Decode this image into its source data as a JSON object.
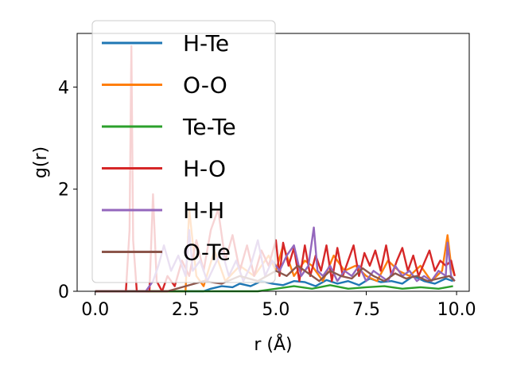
{
  "chart_data": {
    "type": "line",
    "title": "",
    "xlabel": "r (Å)",
    "ylabel": "g(r)",
    "xlim": [
      -0.5,
      10.35
    ],
    "ylim": [
      0,
      5.05
    ],
    "x_ticks": [
      "0.0",
      "2.5",
      "5.0",
      "7.5",
      "10.0"
    ],
    "y_ticks": [
      "0",
      "2",
      "4"
    ],
    "grid": false,
    "legend_position": "upper-left",
    "series": [
      {
        "name": "H-Te",
        "color": "#1f77b4",
        "x": [
          0,
          3.0,
          3.2,
          3.5,
          3.8,
          4.0,
          4.3,
          4.6,
          4.9,
          5.2,
          5.5,
          5.8,
          6.1,
          6.4,
          6.7,
          7.0,
          7.3,
          7.6,
          7.9,
          8.2,
          8.5,
          8.8,
          9.1,
          9.4,
          9.7,
          9.9
        ],
        "y": [
          0,
          0,
          0.05,
          0.1,
          0.08,
          0.15,
          0.1,
          0.2,
          0.15,
          0.12,
          0.2,
          0.18,
          0.1,
          0.22,
          0.15,
          0.2,
          0.12,
          0.25,
          0.18,
          0.2,
          0.15,
          0.3,
          0.2,
          0.15,
          0.25,
          0.2
        ]
      },
      {
        "name": "O-O",
        "color": "#ff7f0e",
        "x": [
          0,
          2.5,
          2.6,
          2.8,
          3.0,
          3.3,
          3.6,
          4.0,
          4.4,
          4.8,
          5.0,
          5.2,
          5.5,
          5.8,
          6.0,
          6.3,
          6.6,
          6.9,
          7.2,
          7.5,
          7.8,
          8.1,
          8.4,
          8.7,
          9.0,
          9.3,
          9.6,
          9.75,
          9.85,
          9.95
        ],
        "y": [
          0,
          0,
          1.6,
          0.3,
          0.1,
          0.8,
          0.2,
          0.5,
          0.3,
          0.7,
          0.4,
          0.9,
          0.3,
          0.6,
          0.5,
          0.2,
          0.7,
          0.4,
          0.5,
          0.3,
          0.2,
          0.6,
          0.4,
          0.3,
          0.5,
          0.2,
          0.4,
          1.1,
          0.5,
          0.3
        ]
      },
      {
        "name": "Te-Te",
        "color": "#2ca02c",
        "x": [
          0,
          4.5,
          5.0,
          5.5,
          6.0,
          6.5,
          7.0,
          7.5,
          8.0,
          8.5,
          9.0,
          9.5,
          9.9
        ],
        "y": [
          0,
          0,
          0.05,
          0.1,
          0.05,
          0.12,
          0.05,
          0.08,
          0.1,
          0.05,
          0.08,
          0.05,
          0.1
        ]
      },
      {
        "name": "H-O",
        "color": "#d62728",
        "x": [
          0,
          0.85,
          0.95,
          1.0,
          1.05,
          1.15,
          1.5,
          1.6,
          1.7,
          1.85,
          2.0,
          2.2,
          2.4,
          2.6,
          2.8,
          3.0,
          3.2,
          3.4,
          3.6,
          3.8,
          4.0,
          4.2,
          4.4,
          4.6,
          4.8,
          5.0,
          5.1,
          5.2,
          5.35,
          5.5,
          5.65,
          5.8,
          5.95,
          6.1,
          6.25,
          6.4,
          6.55,
          6.7,
          6.85,
          7.0,
          7.15,
          7.3,
          7.45,
          7.6,
          7.75,
          7.9,
          8.05,
          8.2,
          8.35,
          8.5,
          8.65,
          8.8,
          8.95,
          9.1,
          9.25,
          9.4,
          9.55,
          9.7,
          9.85,
          9.95
        ],
        "y": [
          0,
          0,
          1.2,
          4.8,
          1.0,
          0,
          0,
          1.9,
          0.2,
          0,
          0.3,
          0.1,
          0.6,
          0.3,
          1.0,
          0.4,
          1.2,
          1.6,
          0.6,
          1.1,
          0.4,
          0.9,
          0.3,
          0.8,
          0.5,
          1.0,
          0.3,
          0.95,
          0.5,
          0.85,
          0.2,
          0.9,
          0.3,
          0.7,
          0.4,
          0.9,
          0.2,
          0.85,
          0.3,
          0.6,
          0.9,
          0.3,
          0.75,
          0.5,
          0.8,
          0.4,
          0.9,
          0.3,
          0.6,
          0.85,
          0.4,
          0.7,
          0.3,
          0.55,
          0.8,
          0.4,
          0.6,
          0.5,
          0.6,
          0.3
        ]
      },
      {
        "name": "H-H",
        "color": "#9467bd",
        "x": [
          0,
          1.4,
          1.6,
          1.75,
          1.9,
          2.1,
          2.3,
          2.5,
          2.6,
          2.7,
          2.9,
          3.1,
          3.3,
          3.5,
          3.7,
          3.9,
          4.1,
          4.3,
          4.5,
          4.7,
          4.9,
          5.1,
          5.3,
          5.5,
          5.7,
          5.9,
          6.05,
          6.15,
          6.3,
          6.5,
          6.7,
          6.9,
          7.1,
          7.3,
          7.5,
          7.7,
          7.9,
          8.1,
          8.3,
          8.5,
          8.7,
          8.9,
          9.1,
          9.3,
          9.5,
          9.7,
          9.75,
          9.85,
          9.95
        ],
        "y": [
          0,
          0,
          0.2,
          0.5,
          0.9,
          0.4,
          0.7,
          0.3,
          1.2,
          0.4,
          0.6,
          0.2,
          0.5,
          0.8,
          0.3,
          0.6,
          0.2,
          0.5,
          1.0,
          0.3,
          0.6,
          0.4,
          0.7,
          0.9,
          0.3,
          0.5,
          1.25,
          0.4,
          0.3,
          0.5,
          0.2,
          0.4,
          0.3,
          0.5,
          0.2,
          0.4,
          0.3,
          0.2,
          0.5,
          0.3,
          0.4,
          0.2,
          0.3,
          0.2,
          0.4,
          0.3,
          0.95,
          0.3,
          0.2
        ]
      },
      {
        "name": "O-Te",
        "color": "#8c564b",
        "x": [
          0,
          2.0,
          2.5,
          3.0,
          3.5,
          4.0,
          4.5,
          5.0,
          5.3,
          5.6,
          5.9,
          6.2,
          6.5,
          6.8,
          7.1,
          7.4,
          7.7,
          8.0,
          8.3,
          8.6,
          8.9,
          9.2,
          9.5,
          9.8,
          9.95
        ],
        "y": [
          0,
          0,
          0.1,
          0.2,
          0.15,
          0.3,
          0.2,
          0.4,
          0.3,
          0.5,
          0.35,
          0.2,
          0.4,
          0.3,
          0.25,
          0.45,
          0.3,
          0.2,
          0.35,
          0.25,
          0.3,
          0.2,
          0.25,
          0.3,
          0.2
        ]
      }
    ]
  }
}
